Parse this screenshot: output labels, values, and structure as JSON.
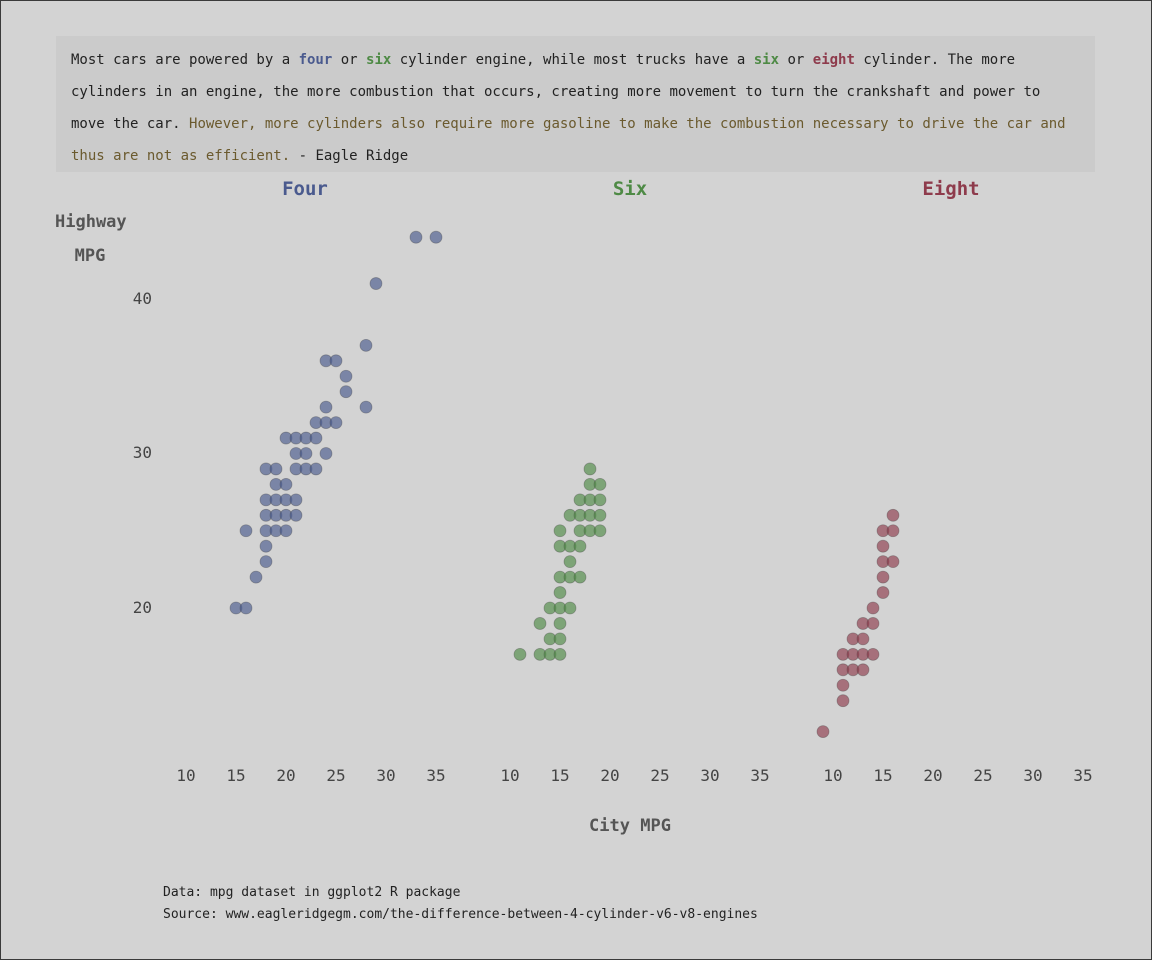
{
  "quote": {
    "part1": "Most cars are powered by a ",
    "four": "four",
    "or1": " or ",
    "six": "six",
    "part2": " cylinder engine, while most trucks have a ",
    "six2": "six",
    "or2": " or ",
    "eight": "eight",
    "part3": " cylinder. The more cylinders in an engine, the more combustion that occurs, creating more movement to turn the crankshaft and power to move the car. ",
    "highlight": "However, more cylinders also require more gasoline to make the combustion necessary to drive the car and thus are not as efficient.",
    "attribution": " - Eagle Ridge"
  },
  "y_label_line1": "Highway",
  "y_label_line2": "MPG",
  "x_label": "City MPG",
  "caption": {
    "data": "Data: mpg dataset in ggplot2 R package",
    "source": "Source: www.eagleridgegm.com/the-difference-between-4-cylinder-v6-v8-engines"
  },
  "colors": {
    "four": "#4a5a8e",
    "six": "#4e8a45",
    "eight": "#8e3b4c",
    "highlight_text": "#6b5a2e",
    "background": "#d3d3d3"
  },
  "chart_data": {
    "type": "scatter",
    "xlabel": "City MPG",
    "ylabel": "Highway MPG",
    "xlim": [
      10,
      35
    ],
    "ylim": [
      11,
      45
    ],
    "x_ticks": [
      10,
      15,
      20,
      25,
      30,
      35
    ],
    "y_ticks": [
      20,
      30,
      40
    ],
    "grid": false,
    "facets": [
      {
        "name": "Four",
        "color": "#4a5a8e",
        "points": [
          [
            15,
            20
          ],
          [
            16,
            20
          ],
          [
            16,
            25
          ],
          [
            17,
            22
          ],
          [
            18,
            23
          ],
          [
            18,
            24
          ],
          [
            18,
            25
          ],
          [
            18,
            26
          ],
          [
            18,
            27
          ],
          [
            18,
            29
          ],
          [
            19,
            25
          ],
          [
            19,
            26
          ],
          [
            19,
            27
          ],
          [
            19,
            28
          ],
          [
            19,
            29
          ],
          [
            20,
            25
          ],
          [
            20,
            26
          ],
          [
            20,
            27
          ],
          [
            20,
            28
          ],
          [
            20,
            31
          ],
          [
            21,
            26
          ],
          [
            21,
            27
          ],
          [
            21,
            29
          ],
          [
            21,
            30
          ],
          [
            21,
            31
          ],
          [
            22,
            29
          ],
          [
            22,
            30
          ],
          [
            22,
            31
          ],
          [
            23,
            29
          ],
          [
            23,
            31
          ],
          [
            23,
            32
          ],
          [
            24,
            30
          ],
          [
            24,
            32
          ],
          [
            24,
            33
          ],
          [
            24,
            36
          ],
          [
            25,
            32
          ],
          [
            25,
            36
          ],
          [
            26,
            34
          ],
          [
            26,
            35
          ],
          [
            28,
            33
          ],
          [
            28,
            37
          ],
          [
            29,
            41
          ],
          [
            33,
            44
          ],
          [
            35,
            44
          ]
        ]
      },
      {
        "name": "Six",
        "color": "#4e8a45",
        "points": [
          [
            11,
            17
          ],
          [
            13,
            17
          ],
          [
            13,
            19
          ],
          [
            14,
            17
          ],
          [
            14,
            18
          ],
          [
            14,
            20
          ],
          [
            15,
            17
          ],
          [
            15,
            18
          ],
          [
            15,
            19
          ],
          [
            15,
            20
          ],
          [
            15,
            21
          ],
          [
            15,
            22
          ],
          [
            15,
            24
          ],
          [
            15,
            25
          ],
          [
            16,
            20
          ],
          [
            16,
            22
          ],
          [
            16,
            23
          ],
          [
            16,
            24
          ],
          [
            16,
            26
          ],
          [
            17,
            22
          ],
          [
            17,
            24
          ],
          [
            17,
            25
          ],
          [
            17,
            26
          ],
          [
            17,
            27
          ],
          [
            18,
            25
          ],
          [
            18,
            26
          ],
          [
            18,
            27
          ],
          [
            18,
            28
          ],
          [
            18,
            29
          ],
          [
            19,
            25
          ],
          [
            19,
            26
          ],
          [
            19,
            27
          ],
          [
            19,
            28
          ]
        ]
      },
      {
        "name": "Eight",
        "color": "#8e3b4c",
        "points": [
          [
            9,
            12
          ],
          [
            11,
            14
          ],
          [
            11,
            15
          ],
          [
            11,
            16
          ],
          [
            11,
            17
          ],
          [
            12,
            16
          ],
          [
            12,
            17
          ],
          [
            12,
            18
          ],
          [
            13,
            16
          ],
          [
            13,
            17
          ],
          [
            13,
            18
          ],
          [
            13,
            19
          ],
          [
            14,
            17
          ],
          [
            14,
            19
          ],
          [
            14,
            20
          ],
          [
            15,
            21
          ],
          [
            15,
            22
          ],
          [
            15,
            23
          ],
          [
            15,
            24
          ],
          [
            15,
            25
          ],
          [
            16,
            23
          ],
          [
            16,
            25
          ],
          [
            16,
            26
          ]
        ]
      }
    ]
  }
}
